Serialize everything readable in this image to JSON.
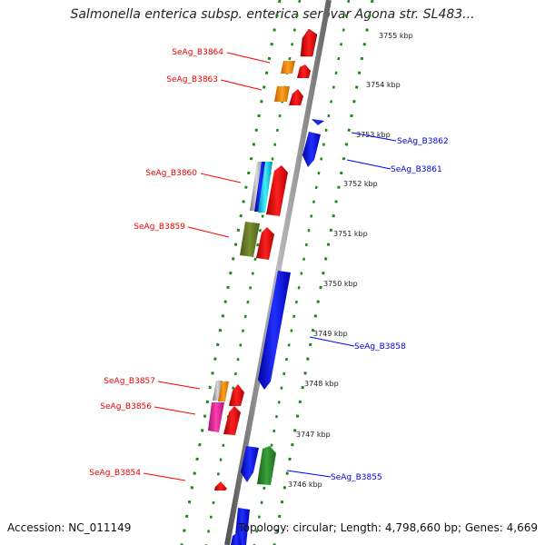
{
  "title": "Salmonella enterica subsp. enterica serovar Agona str. SL483...",
  "footer": {
    "accession": "Accession: NC_011149",
    "summary": "Topology: circular; Length: 4,798,660 bp; Genes: 4,669"
  },
  "colors": {
    "strand_plus": "#ff0000",
    "strand_minus": "#0000ff",
    "dotted_track": "#1a8a1a",
    "backbone": "#888888"
  },
  "ticks": [
    "3755 kbp",
    "3754 kbp",
    "3753 kbp",
    "3752 kbp",
    "3751 kbp",
    "3750 kbp",
    "3749 kbp",
    "3748 kbp",
    "3747 kbp",
    "3746 kbp"
  ],
  "left_labels": [
    "SeAg_B3864",
    "SeAg_B3863",
    "SeAg_B3860",
    "SeAg_B3859",
    "SeAg_B3857",
    "SeAg_B3856",
    "SeAg_B3854"
  ],
  "right_labels": [
    "SeAg_B3862",
    "SeAg_B3861",
    "SeAg_B3858",
    "SeAg_B3855"
  ]
}
